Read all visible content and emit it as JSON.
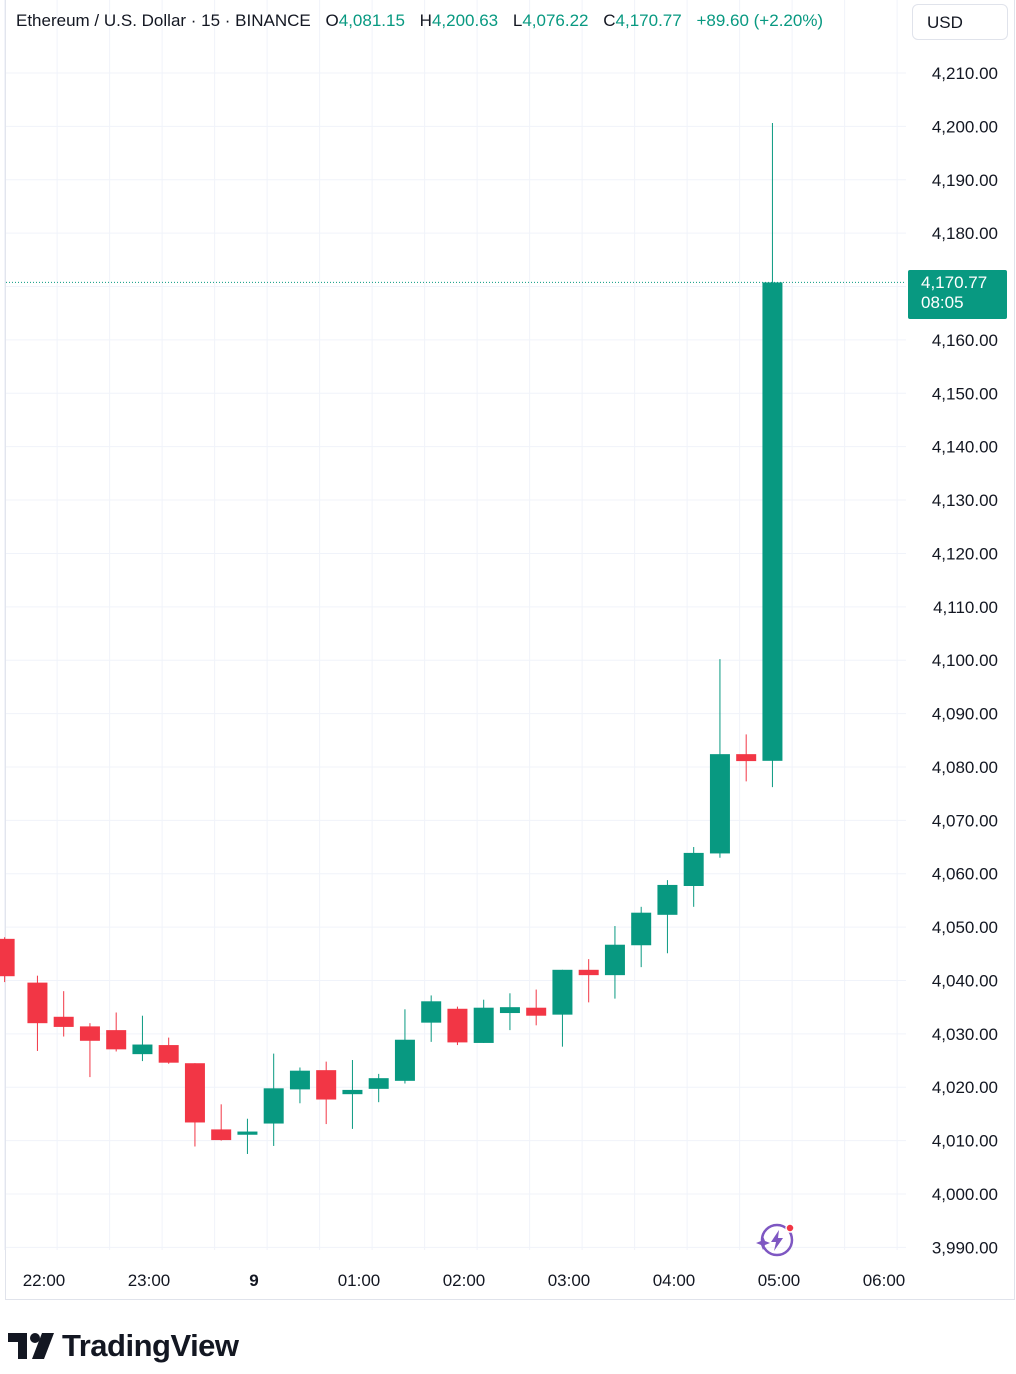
{
  "header": {
    "symbol_title": "Ethereum / U.S. Dollar · 15 · BINANCE",
    "open_label": "O",
    "open_value": "4,081.15",
    "high_label": "H",
    "high_value": "4,200.63",
    "low_label": "L",
    "low_value": "4,076.22",
    "close_label": "C",
    "close_value": "4,170.77",
    "change": "+89.60 (+2.20%)",
    "currency": "USD"
  },
  "price_tag": {
    "price": "4,170.77",
    "countdown": "08:05"
  },
  "brand": {
    "wordmark": "TradingView"
  },
  "colors": {
    "up": "#089981",
    "down": "#F23645",
    "grid": "#F0F3FA",
    "text": "#131722",
    "ai_icon": "#7E57C2"
  },
  "icons": [
    "ai-sparkle-icon",
    "tradingview-logo-icon"
  ],
  "chart_data": {
    "type": "candlestick",
    "symbol": "Ethereum / U.S. Dollar",
    "interval": "15",
    "exchange": "BINANCE",
    "y_ticks": [
      "4,210.00",
      "4,200.00",
      "4,190.00",
      "4,180.00",
      "4,160.00",
      "4,150.00",
      "4,140.00",
      "4,130.00",
      "4,120.00",
      "4,110.00",
      "4,100.00",
      "4,090.00",
      "4,080.00",
      "4,070.00",
      "4,060.00",
      "4,050.00",
      "4,040.00",
      "4,030.00",
      "4,020.00",
      "4,010.00",
      "4,000.00",
      "3,990.00"
    ],
    "y_tick_values": [
      4210,
      4200,
      4190,
      4180,
      4160,
      4150,
      4140,
      4130,
      4120,
      4110,
      4100,
      4090,
      4080,
      4070,
      4060,
      4050,
      4040,
      4030,
      4020,
      4010,
      4000,
      3990
    ],
    "x_ticks": [
      {
        "label": "22:00",
        "t": 0,
        "bold": false
      },
      {
        "label": "23:00",
        "t": 4,
        "bold": false
      },
      {
        "label": "9",
        "t": 8,
        "bold": true
      },
      {
        "label": "01:00",
        "t": 12,
        "bold": false
      },
      {
        "label": "02:00",
        "t": 16,
        "bold": false
      },
      {
        "label": "03:00",
        "t": 20,
        "bold": false
      },
      {
        "label": "04:00",
        "t": 24,
        "bold": false
      },
      {
        "label": "05:00",
        "t": 28,
        "bold": false
      },
      {
        "label": "06:00",
        "t": 32,
        "bold": false
      }
    ],
    "last_price": 4170.77,
    "candles": [
      {
        "t": -1.5,
        "o": 4047.8,
        "h": 4048.1,
        "l": 4039.7,
        "c": 4040.8
      },
      {
        "t": -0.25,
        "o": 4039.6,
        "h": 4040.9,
        "l": 4026.8,
        "c": 4032.0
      },
      {
        "t": 0.75,
        "o": 4033.2,
        "h": 4038.0,
        "l": 4029.5,
        "c": 4031.3
      },
      {
        "t": 1.75,
        "o": 4031.4,
        "h": 4032.0,
        "l": 4021.9,
        "c": 4028.7
      },
      {
        "t": 2.75,
        "o": 4030.7,
        "h": 4034.0,
        "l": 4026.7,
        "c": 4027.1
      },
      {
        "t": 3.75,
        "o": 4026.2,
        "h": 4033.4,
        "l": 4024.9,
        "c": 4028.0
      },
      {
        "t": 4.75,
        "o": 4027.9,
        "h": 4029.3,
        "l": 4024.4,
        "c": 4024.6
      },
      {
        "t": 5.75,
        "o": 4024.5,
        "h": 4024.5,
        "l": 4008.9,
        "c": 4013.4
      },
      {
        "t": 6.75,
        "o": 4012.1,
        "h": 4016.8,
        "l": 4010.0,
        "c": 4010.1
      },
      {
        "t": 7.75,
        "o": 4011.1,
        "h": 4014.1,
        "l": 4007.5,
        "c": 4011.7
      },
      {
        "t": 8.75,
        "o": 4013.2,
        "h": 4026.3,
        "l": 4009.0,
        "c": 4019.8
      },
      {
        "t": 9.75,
        "o": 4019.6,
        "h": 4023.7,
        "l": 4017.0,
        "c": 4023.1
      },
      {
        "t": 10.75,
        "o": 4023.2,
        "h": 4024.8,
        "l": 4013.1,
        "c": 4017.7
      },
      {
        "t": 11.75,
        "o": 4018.7,
        "h": 4025.1,
        "l": 4012.2,
        "c": 4019.5
      },
      {
        "t": 12.75,
        "o": 4019.7,
        "h": 4022.5,
        "l": 4017.2,
        "c": 4021.7
      },
      {
        "t": 13.75,
        "o": 4021.2,
        "h": 4034.6,
        "l": 4020.7,
        "c": 4028.9
      },
      {
        "t": 14.75,
        "o": 4032.1,
        "h": 4037.2,
        "l": 4028.5,
        "c": 4036.1
      },
      {
        "t": 15.75,
        "o": 4034.7,
        "h": 4035.1,
        "l": 4027.9,
        "c": 4028.4
      },
      {
        "t": 16.75,
        "o": 4028.3,
        "h": 4036.4,
        "l": 4028.3,
        "c": 4034.9
      },
      {
        "t": 17.75,
        "o": 4033.9,
        "h": 4037.6,
        "l": 4030.7,
        "c": 4035.0
      },
      {
        "t": 18.75,
        "o": 4034.9,
        "h": 4038.3,
        "l": 4031.6,
        "c": 4033.4
      },
      {
        "t": 19.75,
        "o": 4033.6,
        "h": 4042.0,
        "l": 4027.6,
        "c": 4042.0
      },
      {
        "t": 20.75,
        "o": 4042.0,
        "h": 4044.0,
        "l": 4035.9,
        "c": 4041.0
      },
      {
        "t": 21.75,
        "o": 4041.0,
        "h": 4050.2,
        "l": 4036.6,
        "c": 4046.7
      },
      {
        "t": 22.75,
        "o": 4046.6,
        "h": 4053.8,
        "l": 4042.5,
        "c": 4052.7
      },
      {
        "t": 23.75,
        "o": 4052.3,
        "h": 4058.8,
        "l": 4045.1,
        "c": 4057.9
      },
      {
        "t": 24.75,
        "o": 4057.7,
        "h": 4065.0,
        "l": 4053.8,
        "c": 4063.9
      },
      {
        "t": 25.75,
        "o": 4063.8,
        "h": 4100.2,
        "l": 4063.0,
        "c": 4082.4
      },
      {
        "t": 26.75,
        "o": 4082.4,
        "h": 4086.1,
        "l": 4077.3,
        "c": 4081.1
      },
      {
        "t": 27.75,
        "o": 4081.15,
        "h": 4200.63,
        "l": 4076.22,
        "c": 4170.77
      }
    ]
  }
}
